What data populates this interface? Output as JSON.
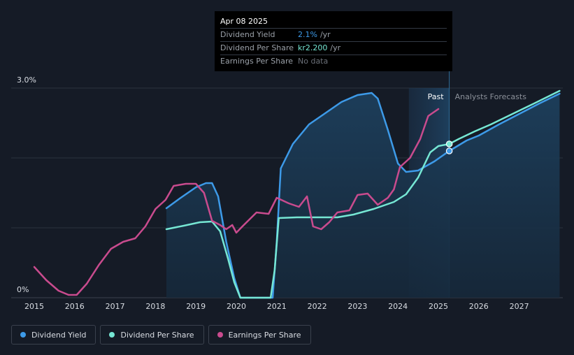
{
  "tooltip": {
    "date": "Apr 08 2025",
    "rows": [
      {
        "label": "Dividend Yield",
        "value": "2.1%",
        "unit": "/yr"
      },
      {
        "label": "Dividend Per Share",
        "value": "kr2.200",
        "unit": "/yr"
      },
      {
        "label": "Earnings Per Share",
        "value": "No data",
        "unit": ""
      }
    ]
  },
  "region_labels": {
    "past": "Past",
    "forecast": "Analysts Forecasts"
  },
  "legend": [
    {
      "label": "Dividend Yield",
      "color": "#3d9ae8"
    },
    {
      "label": "Dividend Per Share",
      "color": "#76e7d4"
    },
    {
      "label": "Earnings Per Share",
      "color": "#c94b8e"
    }
  ],
  "chart_data": {
    "type": "line",
    "title": "",
    "xlabel": "",
    "ylabel": "",
    "xlim": [
      2015,
      2028
    ],
    "ylim": [
      0,
      3.0
    ],
    "y_tick_labels": [
      "3.0%",
      "0%"
    ],
    "x_ticks": [
      2015,
      2016,
      2017,
      2018,
      2019,
      2020,
      2021,
      2022,
      2023,
      2024,
      2025,
      2026,
      2027
    ],
    "past_forecast_boundary": 2025.27,
    "highlight_start": 2024.27,
    "series": [
      {
        "name": "Dividend Yield",
        "color": "#3d9ae8",
        "fill": true,
        "points": [
          [
            2018.27,
            1.28
          ],
          [
            2018.6,
            1.42
          ],
          [
            2019.0,
            1.58
          ],
          [
            2019.25,
            1.64
          ],
          [
            2019.4,
            1.64
          ],
          [
            2019.55,
            1.45
          ],
          [
            2019.75,
            0.8
          ],
          [
            2019.95,
            0.28
          ],
          [
            2020.1,
            0.0
          ],
          [
            2020.9,
            0.0
          ],
          [
            2021.0,
            0.8
          ],
          [
            2021.1,
            1.85
          ],
          [
            2021.4,
            2.2
          ],
          [
            2021.8,
            2.48
          ],
          [
            2022.2,
            2.64
          ],
          [
            2022.6,
            2.8
          ],
          [
            2023.0,
            2.9
          ],
          [
            2023.35,
            2.93
          ],
          [
            2023.5,
            2.85
          ],
          [
            2023.75,
            2.4
          ],
          [
            2024.0,
            1.92
          ],
          [
            2024.2,
            1.8
          ],
          [
            2024.5,
            1.82
          ],
          [
            2024.9,
            1.95
          ],
          [
            2025.27,
            2.1
          ],
          [
            2025.7,
            2.25
          ],
          [
            2026.0,
            2.32
          ],
          [
            2026.5,
            2.48
          ],
          [
            2027.0,
            2.63
          ],
          [
            2027.5,
            2.78
          ],
          [
            2028.0,
            2.92
          ]
        ]
      },
      {
        "name": "Dividend Per Share",
        "color": "#76e7d4",
        "fill": false,
        "points": [
          [
            2018.27,
            0.98
          ],
          [
            2018.7,
            1.03
          ],
          [
            2019.1,
            1.08
          ],
          [
            2019.4,
            1.09
          ],
          [
            2019.6,
            0.95
          ],
          [
            2019.8,
            0.55
          ],
          [
            2019.95,
            0.22
          ],
          [
            2020.1,
            0.0
          ],
          [
            2020.85,
            0.0
          ],
          [
            2020.95,
            0.4
          ],
          [
            2021.05,
            1.14
          ],
          [
            2021.5,
            1.15
          ],
          [
            2022.0,
            1.15
          ],
          [
            2022.5,
            1.15
          ],
          [
            2022.9,
            1.19
          ],
          [
            2023.4,
            1.27
          ],
          [
            2023.9,
            1.37
          ],
          [
            2024.2,
            1.48
          ],
          [
            2024.5,
            1.72
          ],
          [
            2024.8,
            2.08
          ],
          [
            2025.0,
            2.17
          ],
          [
            2025.27,
            2.2
          ],
          [
            2025.5,
            2.27
          ],
          [
            2025.9,
            2.38
          ],
          [
            2026.3,
            2.48
          ],
          [
            2026.8,
            2.62
          ],
          [
            2027.3,
            2.76
          ],
          [
            2028.0,
            2.96
          ]
        ]
      },
      {
        "name": "Earnings Per Share",
        "color": "#c94b8e",
        "fill": false,
        "points": [
          [
            2015.0,
            0.44
          ],
          [
            2015.3,
            0.25
          ],
          [
            2015.6,
            0.1
          ],
          [
            2015.85,
            0.04
          ],
          [
            2016.05,
            0.04
          ],
          [
            2016.3,
            0.2
          ],
          [
            2016.6,
            0.47
          ],
          [
            2016.9,
            0.7
          ],
          [
            2017.2,
            0.8
          ],
          [
            2017.5,
            0.85
          ],
          [
            2017.75,
            1.02
          ],
          [
            2018.0,
            1.27
          ],
          [
            2018.25,
            1.4
          ],
          [
            2018.45,
            1.6
          ],
          [
            2018.75,
            1.63
          ],
          [
            2019.0,
            1.63
          ],
          [
            2019.2,
            1.5
          ],
          [
            2019.4,
            1.1
          ],
          [
            2019.6,
            1.04
          ],
          [
            2019.75,
            0.98
          ],
          [
            2019.9,
            1.04
          ],
          [
            2020.0,
            0.93
          ],
          [
            2020.15,
            1.02
          ],
          [
            2020.5,
            1.22
          ],
          [
            2020.8,
            1.2
          ],
          [
            2021.0,
            1.43
          ],
          [
            2021.3,
            1.35
          ],
          [
            2021.55,
            1.3
          ],
          [
            2021.75,
            1.45
          ],
          [
            2021.9,
            1.02
          ],
          [
            2022.1,
            0.98
          ],
          [
            2022.3,
            1.08
          ],
          [
            2022.5,
            1.22
          ],
          [
            2022.8,
            1.25
          ],
          [
            2023.0,
            1.47
          ],
          [
            2023.25,
            1.49
          ],
          [
            2023.5,
            1.33
          ],
          [
            2023.75,
            1.43
          ],
          [
            2023.9,
            1.55
          ],
          [
            2024.05,
            1.87
          ],
          [
            2024.3,
            2.0
          ],
          [
            2024.55,
            2.27
          ],
          [
            2024.75,
            2.6
          ],
          [
            2025.0,
            2.7
          ]
        ]
      }
    ],
    "markers": [
      {
        "series": "Dividend Per Share",
        "x": 2025.27,
        "y": 2.2
      },
      {
        "series": "Dividend Yield",
        "x": 2025.27,
        "y": 2.1
      }
    ]
  }
}
